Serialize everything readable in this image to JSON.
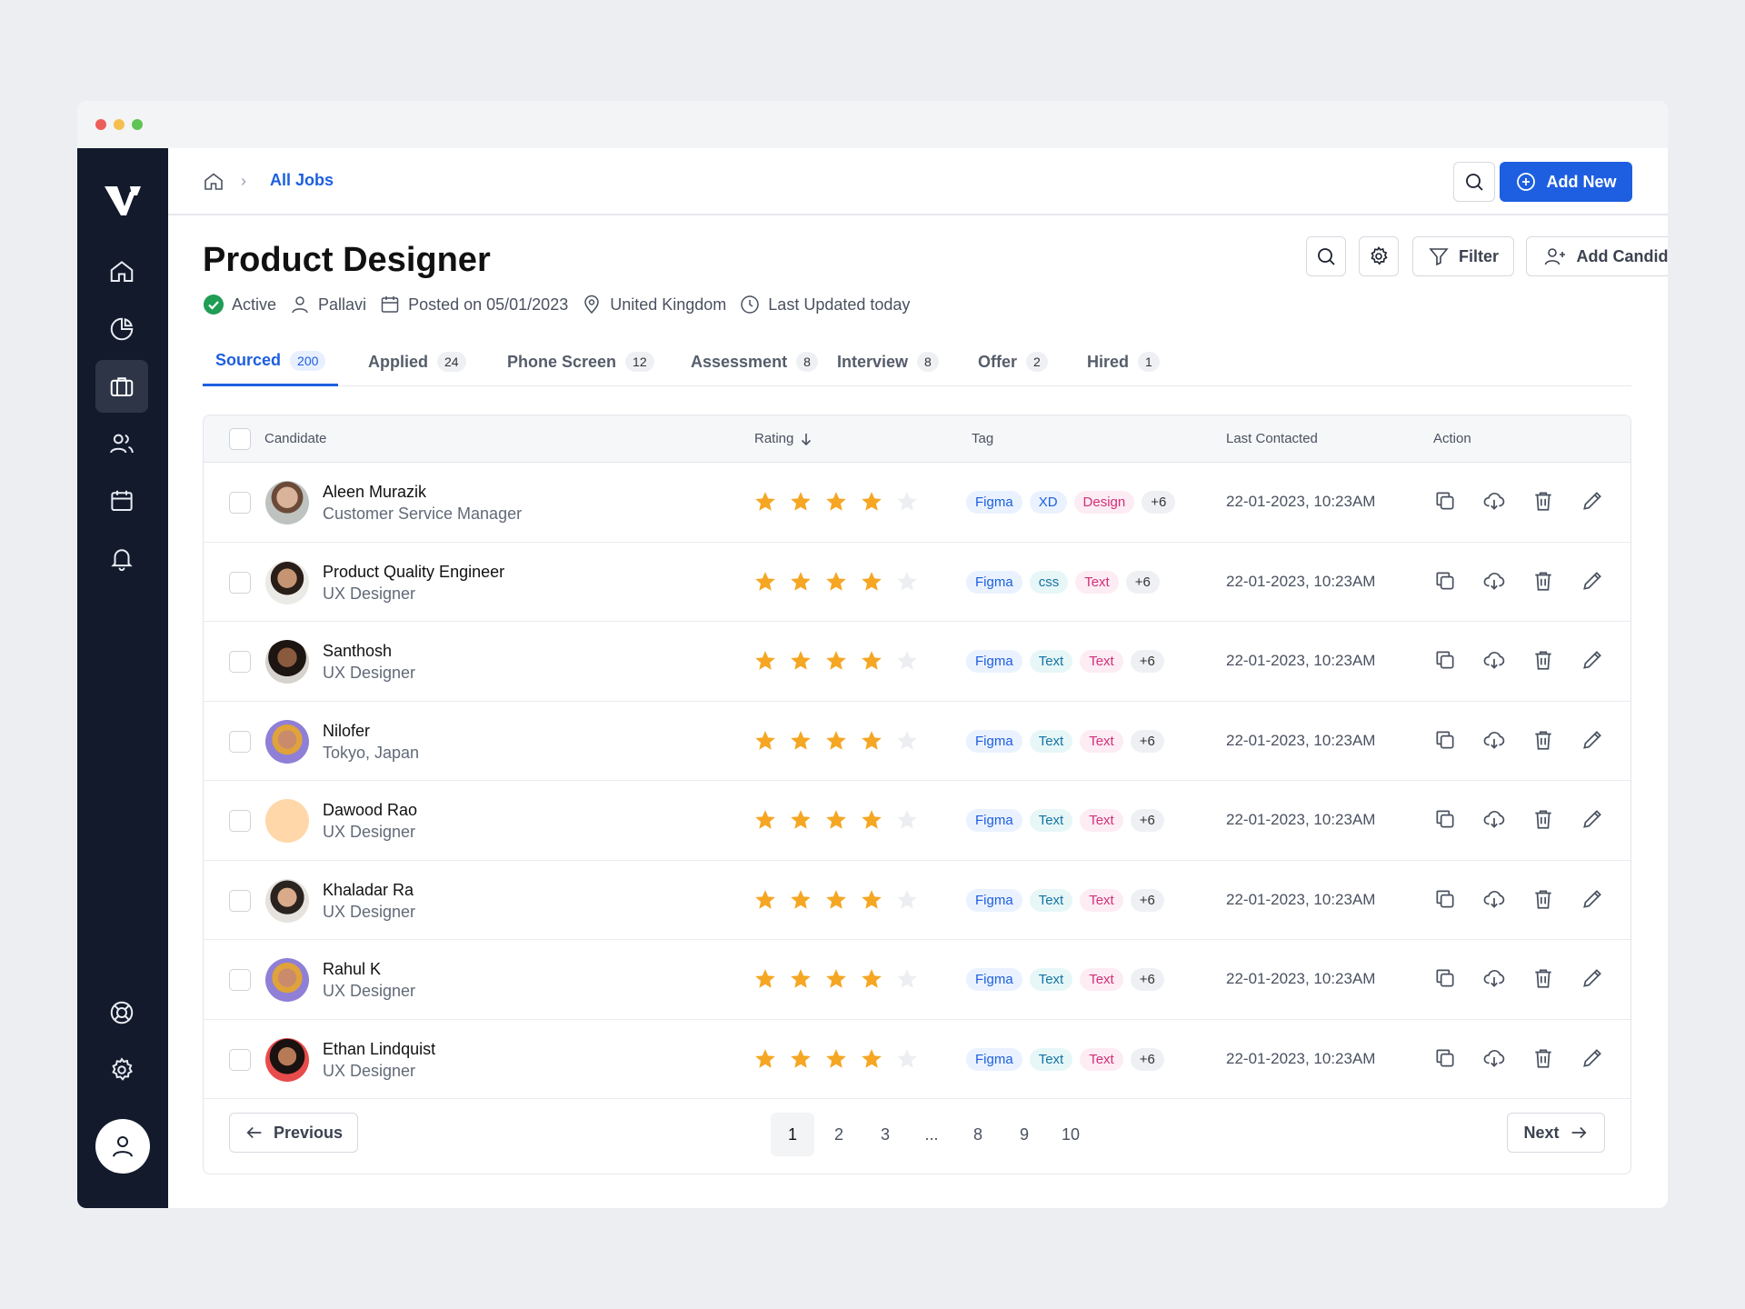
{
  "breadcrumb": {
    "current": "All Jobs"
  },
  "topbar": {
    "add_new_label": "Add New"
  },
  "job": {
    "title": "Product Designer",
    "status": "Active",
    "owner": "Pallavi",
    "posted": "Posted on 05/01/2023",
    "location": "United Kingdom",
    "updated": "Last Updated today"
  },
  "toolbar": {
    "filter_label": "Filter",
    "add_candidate_label": "Add Candidate"
  },
  "tabs": [
    {
      "label": "Sourced",
      "count": "200"
    },
    {
      "label": "Applied",
      "count": "24"
    },
    {
      "label": "Phone Screen",
      "count": "12"
    },
    {
      "label": "Assessment",
      "count": "8"
    },
    {
      "label": "Interview",
      "count": "8"
    },
    {
      "label": "Offer",
      "count": "2"
    },
    {
      "label": "Hired",
      "count": "1"
    }
  ],
  "table": {
    "headers": {
      "candidate": "Candidate",
      "rating": "Rating",
      "tag": "Tag",
      "last_contacted": "Last Contacted",
      "action": "Action"
    },
    "rows": [
      {
        "name": "Aleen Murazik",
        "role": "Customer Service Manager",
        "rating": 4,
        "tags": [
          "Figma",
          "XD",
          "Design",
          "+6"
        ],
        "contacted": "22-01-2023, 10:23AM"
      },
      {
        "name": "Product Quality Engineer",
        "role": "UX Designer",
        "rating": 4,
        "tags": [
          "Figma",
          "css",
          "Text",
          "+6"
        ],
        "contacted": "22-01-2023, 10:23AM"
      },
      {
        "name": "Santhosh",
        "role": "UX Designer",
        "rating": 4,
        "tags": [
          "Figma",
          "Text",
          "Text",
          "+6"
        ],
        "contacted": "22-01-2023, 10:23AM"
      },
      {
        "name": "Nilofer",
        "role": "Tokyo, Japan",
        "rating": 4,
        "tags": [
          "Figma",
          "Text",
          "Text",
          "+6"
        ],
        "contacted": "22-01-2023, 10:23AM"
      },
      {
        "name": "Dawood Rao",
        "role": "UX Designer",
        "rating": 4,
        "tags": [
          "Figma",
          "Text",
          "Text",
          "+6"
        ],
        "contacted": "22-01-2023, 10:23AM"
      },
      {
        "name": "Khaladar Ra",
        "role": "UX Designer",
        "rating": 4,
        "tags": [
          "Figma",
          "Text",
          "Text",
          "+6"
        ],
        "contacted": "22-01-2023, 10:23AM"
      },
      {
        "name": "Rahul K",
        "role": "UX Designer",
        "rating": 4,
        "tags": [
          "Figma",
          "Text",
          "Text",
          "+6"
        ],
        "contacted": "22-01-2023, 10:23AM"
      },
      {
        "name": "Ethan Lindquist",
        "role": "UX Designer",
        "rating": 4,
        "tags": [
          "Figma",
          "Text",
          "Text",
          "+6"
        ],
        "contacted": "22-01-2023, 10:23AM"
      }
    ],
    "max_rating": 5
  },
  "pagination": {
    "previous_label": "Previous",
    "next_label": "Next",
    "pages": [
      "1",
      "2",
      "3",
      "...",
      "8",
      "9",
      "10"
    ],
    "current": "1"
  },
  "colors": {
    "primary": "#1d5fe0",
    "sidebar": "#121a2c",
    "star": "#f5a623",
    "active_status": "#1f9d55"
  }
}
